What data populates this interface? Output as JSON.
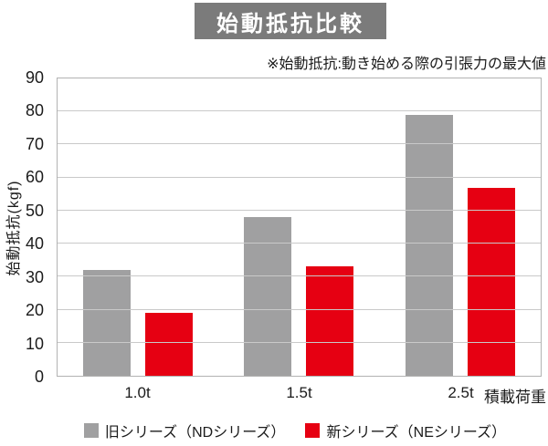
{
  "title": "始動抵抗比較",
  "note": "※始動抵抗:動き始める際の引張力の最大値",
  "chart_data": {
    "type": "bar",
    "title": "始動抵抗比較",
    "categories": [
      "1.0t",
      "1.5t",
      "2.5t"
    ],
    "series": [
      {
        "name": "旧シリーズ（NDシリーズ）",
        "color": "#a0a0a1",
        "values": [
          32,
          48,
          79
        ]
      },
      {
        "name": "新シリーズ（NEシリーズ）",
        "color": "#e60012",
        "values": [
          19,
          33,
          57
        ]
      }
    ],
    "xlabel": "積載荷重",
    "ylabel": "始動抵抗(kgf)",
    "ylim": [
      0,
      90
    ],
    "yticks": [
      0,
      10,
      20,
      30,
      40,
      50,
      60,
      70,
      80,
      90
    ],
    "grid": true,
    "legend_position": "bottom"
  },
  "colors": {
    "title_bg": "#7b7b7b",
    "title_text": "#ffffff",
    "grid": "#c9c9c9",
    "plot_border": "#b2b2b2",
    "text": "#1b1b1b",
    "background": "#ffffff"
  }
}
